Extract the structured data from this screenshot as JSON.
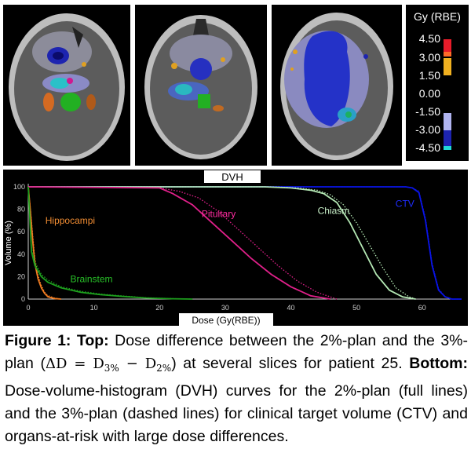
{
  "colorbar": {
    "title": "Gy (RBE)",
    "ticks": [
      "4.50",
      "3.00",
      "1.50",
      "0.00",
      "-1.50",
      "-3.00",
      "-4.50"
    ]
  },
  "chart_data": {
    "type": "line",
    "title": "DVH",
    "xlabel": "Dose (Gy(RBE))",
    "ylabel": "Volume (%)",
    "xlim": [
      0,
      66
    ],
    "ylim": [
      0,
      100
    ],
    "xticks": [
      0,
      10,
      20,
      30,
      40,
      50,
      60
    ],
    "yticks": [
      0,
      20,
      40,
      60,
      80,
      100
    ],
    "grid": false,
    "series": [
      {
        "name": "CTV",
        "style": "solid",
        "color": "#0a14e6",
        "label_color": "#1e2cff",
        "x": [
          0,
          57.5,
          58.5,
          59.5,
          60.5,
          61.5,
          62.5,
          63.5,
          64.5,
          66
        ],
        "y": [
          100,
          100,
          99,
          95,
          70,
          30,
          8,
          2,
          0,
          0
        ]
      },
      {
        "name": "CTV",
        "style": "dashed",
        "color": "#0a14e6",
        "x": [
          0,
          57.5,
          58.5,
          59.5,
          60.5,
          61.5,
          62.5,
          63.5,
          64.5,
          66
        ],
        "y": [
          100,
          100,
          99,
          96,
          72,
          32,
          9,
          2,
          0,
          0
        ]
      },
      {
        "name": "Chiasm",
        "style": "solid",
        "color": "#b4e8b4",
        "label_color": "#c8f0c8",
        "x": [
          0,
          36,
          40,
          43,
          45,
          47,
          49,
          51,
          53,
          55,
          57,
          59
        ],
        "y": [
          100,
          100,
          99,
          97,
          94,
          86,
          68,
          45,
          22,
          8,
          2,
          0
        ]
      },
      {
        "name": "Chiasm",
        "style": "dashed",
        "color": "#b4e8b4",
        "x": [
          0,
          37,
          41,
          44,
          46,
          48,
          50,
          52,
          54,
          56,
          58,
          59
        ],
        "y": [
          100,
          100,
          99,
          97,
          93,
          84,
          68,
          48,
          28,
          10,
          2,
          0
        ]
      },
      {
        "name": "Pituitary",
        "style": "solid",
        "color": "#e0208a",
        "label_color": "#ff2ca0",
        "x": [
          0,
          20,
          22,
          25,
          28,
          31,
          34,
          37,
          40,
          43,
          46
        ],
        "y": [
          100,
          99,
          94,
          84,
          68,
          52,
          36,
          22,
          11,
          3,
          0
        ]
      },
      {
        "name": "Pituitary",
        "style": "dashed",
        "color": "#e0208a",
        "x": [
          0,
          20,
          23,
          26,
          29,
          32,
          35,
          38,
          41,
          44,
          47
        ],
        "y": [
          100,
          99,
          96,
          90,
          78,
          62,
          46,
          30,
          16,
          6,
          0
        ]
      },
      {
        "name": "Hippocampi",
        "style": "solid",
        "color": "#f07c22",
        "label_color": "#f08c32",
        "x": [
          0,
          0.3,
          0.7,
          1,
          1.5,
          2,
          2.5,
          3,
          4,
          5
        ],
        "y": [
          100,
          80,
          50,
          32,
          18,
          10,
          5,
          2,
          0.5,
          0
        ]
      },
      {
        "name": "Hippocampi",
        "style": "dashed",
        "color": "#f07c22",
        "x": [
          0,
          0.3,
          0.7,
          1,
          1.5,
          2,
          2.5,
          3,
          4,
          5
        ],
        "y": [
          100,
          82,
          55,
          36,
          21,
          12,
          6,
          3,
          1,
          0
        ]
      },
      {
        "name": "Brainstem",
        "style": "solid",
        "color": "#1ea01e",
        "label_color": "#28c028",
        "x": [
          0,
          0.5,
          1,
          2,
          3,
          5,
          8,
          11,
          14,
          18,
          22,
          25
        ],
        "y": [
          100,
          42,
          30,
          20,
          15,
          10,
          6,
          4,
          2.5,
          1,
          0.3,
          0
        ]
      },
      {
        "name": "Brainstem",
        "style": "dashed",
        "color": "#1ea01e",
        "x": [
          0,
          0.5,
          1,
          2,
          3,
          5,
          8,
          11,
          14,
          18,
          22,
          25
        ],
        "y": [
          100,
          45,
          33,
          22,
          17,
          11,
          7,
          4.5,
          3,
          1.2,
          0.4,
          0
        ]
      }
    ]
  },
  "caption": {
    "fig_label": "Figure 1:",
    "top_label": "Top:",
    "top_text": "Dose difference between the 2%-plan and the 3%-plan (",
    "math_delta": "ΔD = D",
    "sub_3": "3%",
    "math_minus": " − D",
    "sub_2": "2%",
    "top_tail": ") at several slices for patient 25.",
    "bottom_label": "Bottom:",
    "bottom_text": "Dose-volume-histogram (DVH) curves for the 2%-plan (full lines) and the 3%-plan (dashed lines) for clinical target volume (CTV) and organs-at-risk with large dose differences."
  }
}
